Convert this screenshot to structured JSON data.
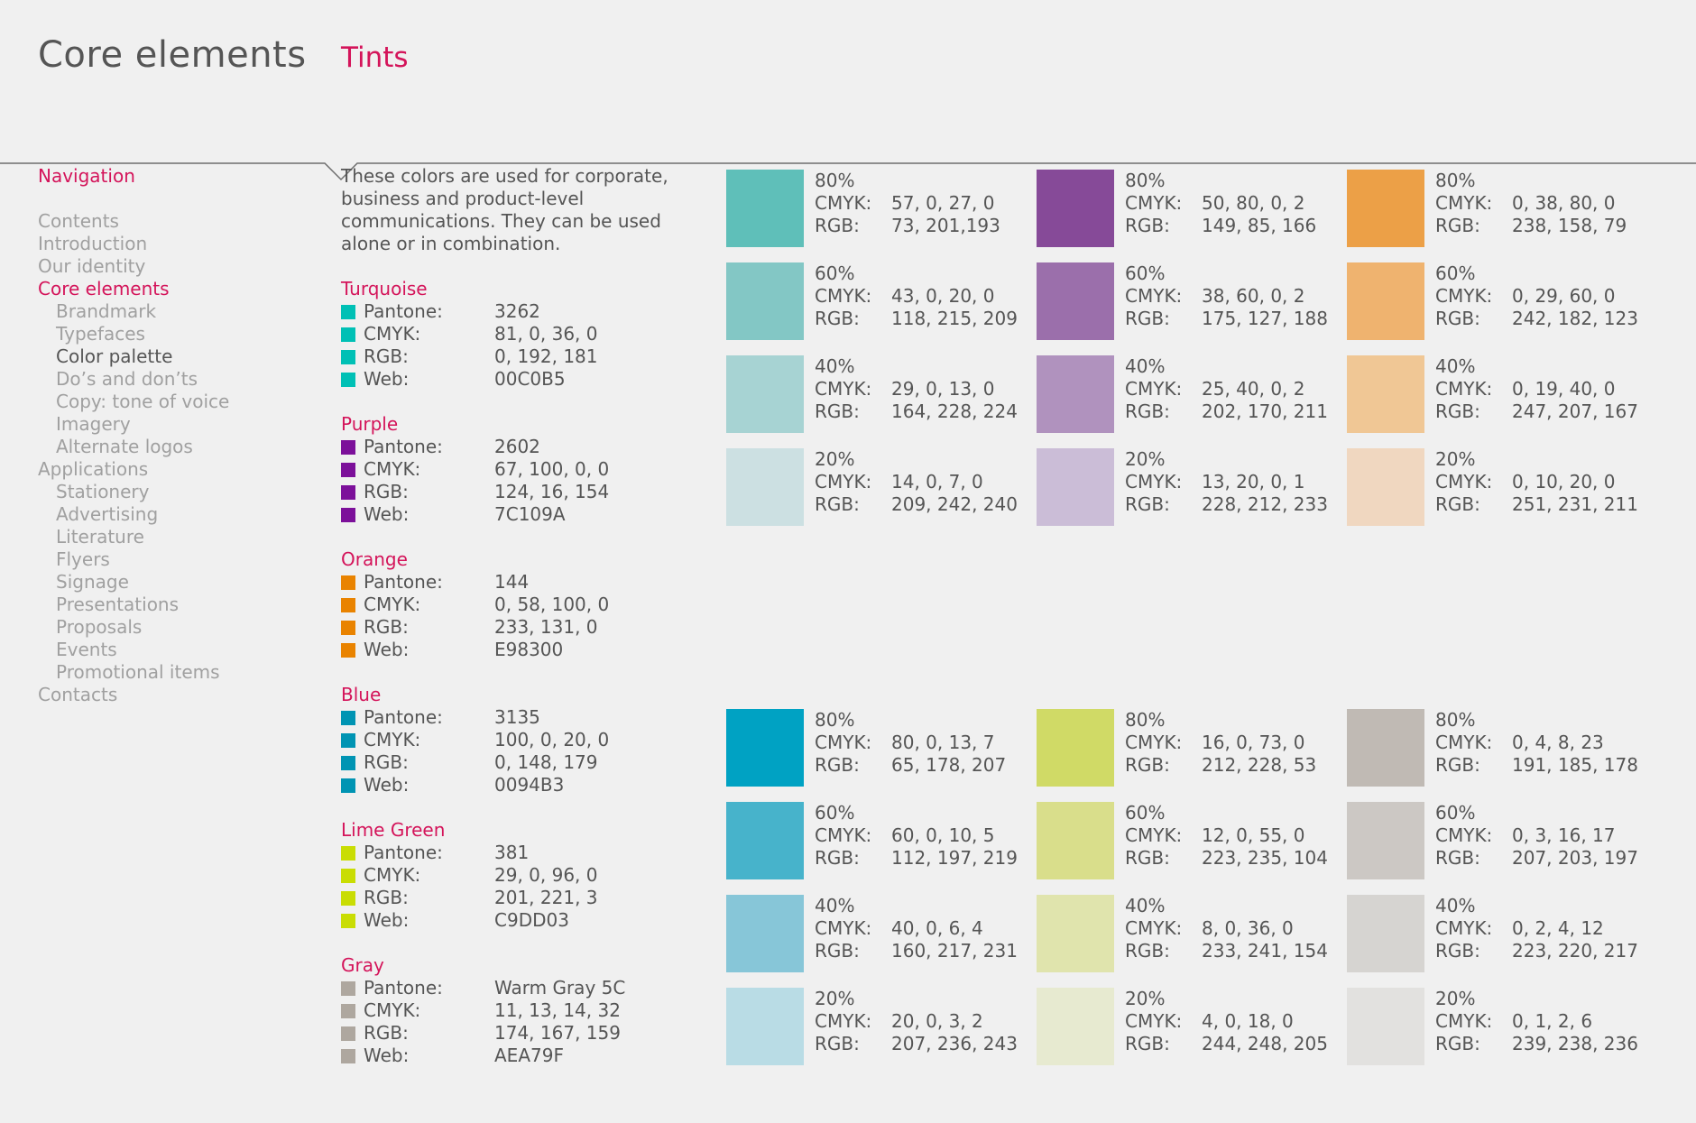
{
  "header": {
    "title": "Core elements",
    "section": "Tints"
  },
  "nav": {
    "heading": "Navigation",
    "items": [
      {
        "label": "Contents",
        "level": 0,
        "state": "normal"
      },
      {
        "label": "Introduction",
        "level": 0,
        "state": "normal"
      },
      {
        "label": "Our identity",
        "level": 0,
        "state": "normal"
      },
      {
        "label": "Core elements",
        "level": 0,
        "state": "active"
      },
      {
        "label": "Brandmark",
        "level": 1,
        "state": "normal"
      },
      {
        "label": "Typefaces",
        "level": 1,
        "state": "normal"
      },
      {
        "label": "Color palette",
        "level": 1,
        "state": "current"
      },
      {
        "label": "Do’s and don’ts",
        "level": 1,
        "state": "normal"
      },
      {
        "label": "Copy: tone of voice",
        "level": 1,
        "state": "normal"
      },
      {
        "label": "Imagery",
        "level": 1,
        "state": "normal"
      },
      {
        "label": "Alternate logos",
        "level": 1,
        "state": "normal"
      },
      {
        "label": "Applications",
        "level": 0,
        "state": "normal"
      },
      {
        "label": "Stationery",
        "level": 1,
        "state": "normal"
      },
      {
        "label": "Advertising",
        "level": 1,
        "state": "normal"
      },
      {
        "label": "Literature",
        "level": 1,
        "state": "normal"
      },
      {
        "label": "Flyers",
        "level": 1,
        "state": "normal"
      },
      {
        "label": "Signage",
        "level": 1,
        "state": "normal"
      },
      {
        "label": "Presentations",
        "level": 1,
        "state": "normal"
      },
      {
        "label": "Proposals",
        "level": 1,
        "state": "normal"
      },
      {
        "label": "Events",
        "level": 1,
        "state": "normal"
      },
      {
        "label": "Promotional items",
        "level": 1,
        "state": "normal"
      },
      {
        "label": "Contacts",
        "level": 0,
        "state": "normal"
      }
    ]
  },
  "intro": "These colors are used for corporate, business and product-level communications. They can be used alone or in combination.",
  "labels": {
    "pantone": "Pantone:",
    "cmyk": "CMYK:",
    "rgb": "RGB:",
    "web": "Web:"
  },
  "colors": [
    {
      "name": "Turquoise",
      "swatch": "#00C0B5",
      "pantone": "3262",
      "cmyk": "81, 0, 36, 0",
      "rgb": "0, 192, 181",
      "web": "00C0B5"
    },
    {
      "name": "Purple",
      "swatch": "#7C109A",
      "pantone": "2602",
      "cmyk": "67, 100, 0, 0",
      "rgb": "124, 16, 154",
      "web": "7C109A"
    },
    {
      "name": "Orange",
      "swatch": "#E98300",
      "pantone": "144",
      "cmyk": "0, 58, 100, 0",
      "rgb": "233, 131, 0",
      "web": "E98300"
    },
    {
      "name": "Blue",
      "swatch": "#0094B3",
      "pantone": "3135",
      "cmyk": "100, 0, 20, 0",
      "rgb": "0, 148, 179",
      "web": "0094B3"
    },
    {
      "name": "Lime Green",
      "swatch": "#C9DD03",
      "pantone": "381",
      "cmyk": "29, 0, 96, 0",
      "rgb": "201, 221, 3",
      "web": "C9DD03"
    },
    {
      "name": "Gray",
      "swatch": "#AEA79F",
      "pantone": "Warm Gray 5C",
      "cmyk": "11, 13, 14, 32",
      "rgb": "174, 167, 159",
      "web": "AEA79F"
    }
  ],
  "tints": [
    {
      "tints": [
        {
          "pct": "80%",
          "cmyk": "57, 0, 27, 0",
          "rgb": "73, 201,193",
          "swatch": "#5fbfb9"
        },
        {
          "pct": "60%",
          "cmyk": "43, 0, 20, 0",
          "rgb": "118, 215, 209",
          "swatch": "#83c7c5"
        },
        {
          "pct": "40%",
          "cmyk": "29, 0, 13, 0",
          "rgb": "164, 228, 224",
          "swatch": "#a7d3d3"
        },
        {
          "pct": "20%",
          "cmyk": "14, 0, 7, 0",
          "rgb": "209, 242, 240",
          "swatch": "#cce0e2"
        }
      ]
    },
    {
      "tints": [
        {
          "pct": "80%",
          "cmyk": "50, 80, 0, 2",
          "rgb": "149, 85, 166",
          "swatch": "#864a98"
        },
        {
          "pct": "60%",
          "cmyk": "38, 60, 0, 2",
          "rgb": "175, 127, 188",
          "swatch": "#9b6fab"
        },
        {
          "pct": "40%",
          "cmyk": "25, 40, 0, 2",
          "rgb": "202, 170, 211",
          "swatch": "#b092be"
        },
        {
          "pct": "20%",
          "cmyk": "13, 20, 0, 1",
          "rgb": "228, 212, 233",
          "swatch": "#cbbdd7"
        }
      ]
    },
    {
      "tints": [
        {
          "pct": "80%",
          "cmyk": "0, 38, 80, 0",
          "rgb": "238, 158, 79",
          "swatch": "#eca047"
        },
        {
          "pct": "60%",
          "cmyk": "0, 29, 60, 0",
          "rgb": "242, 182, 123",
          "swatch": "#efb36f"
        },
        {
          "pct": "40%",
          "cmyk": "0, 19, 40, 0",
          "rgb": "247, 207, 167",
          "swatch": "#f0c795"
        },
        {
          "pct": "20%",
          "cmyk": "0, 10, 20, 0",
          "rgb": "251, 231, 211",
          "swatch": "#f0d7c0"
        }
      ]
    },
    {
      "tints": [
        {
          "pct": "80%",
          "cmyk": "80, 0, 13, 7",
          "rgb": "65, 178, 207",
          "swatch": "#00a2c3"
        },
        {
          "pct": "60%",
          "cmyk": "60, 0, 10, 5",
          "rgb": "112, 197, 219",
          "swatch": "#47b3cb"
        },
        {
          "pct": "40%",
          "cmyk": "40, 0, 6, 4",
          "rgb": "160, 217, 231",
          "swatch": "#87c6d8"
        },
        {
          "pct": "20%",
          "cmyk": "20, 0, 3, 2",
          "rgb": "207, 236, 243",
          "swatch": "#b9dce5"
        }
      ]
    },
    {
      "tints": [
        {
          "pct": "80%",
          "cmyk": "16, 0, 73, 0",
          "rgb": "212, 228, 53",
          "swatch": "#d0da66"
        },
        {
          "pct": "60%",
          "cmyk": "12, 0, 55, 0",
          "rgb": "223, 235, 104",
          "swatch": "#d9de8b"
        },
        {
          "pct": "40%",
          "cmyk": "8, 0, 36, 0",
          "rgb": "233, 241, 154",
          "swatch": "#e0e4ad"
        },
        {
          "pct": "20%",
          "cmyk": "4, 0, 18, 0",
          "rgb": "244, 248, 205",
          "swatch": "#e7ead0"
        }
      ]
    },
    {
      "tints": [
        {
          "pct": "80%",
          "cmyk": "0, 4, 8, 23",
          "rgb": "191, 185, 178",
          "swatch": "#c0bab4"
        },
        {
          "pct": "60%",
          "cmyk": "0, 3, 16, 17",
          "rgb": " 207, 203, 197",
          "swatch": "#ccc8c4"
        },
        {
          "pct": "40%",
          "cmyk": "0, 2, 4, 12",
          "rgb": "223, 220, 217",
          "swatch": "#d6d4d1"
        },
        {
          "pct": "20%",
          "cmyk": "0, 1, 2, 6",
          "rgb": "239, 238, 236",
          "swatch": "#e2e1df"
        }
      ]
    }
  ]
}
